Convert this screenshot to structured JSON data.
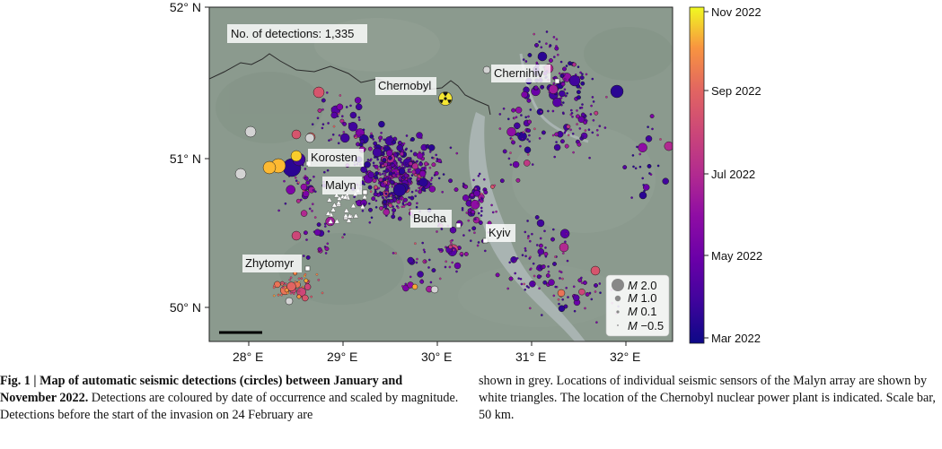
{
  "map": {
    "lon_ticks": [
      "28° E",
      "29° E",
      "30° E",
      "31° E",
      "32° E"
    ],
    "lat_ticks": [
      "52° N",
      "51° N",
      "50° N"
    ],
    "detections_label": "No. of detections: 1,335",
    "places": [
      {
        "name": "Chernobyl"
      },
      {
        "name": "Chernihiv"
      },
      {
        "name": "Korosten"
      },
      {
        "name": "Malyn"
      },
      {
        "name": "Bucha"
      },
      {
        "name": "Kyiv"
      },
      {
        "name": "Zhytomyr"
      }
    ],
    "magnitude_legend": [
      {
        "label": "M 2.0",
        "m": "M",
        "v": " 2.0"
      },
      {
        "label": "M 1.0",
        "m": "M",
        "v": " 1.0"
      },
      {
        "label": "M 0.1",
        "m": "M",
        "v": " 0.1"
      },
      {
        "label": "M −0.5",
        "m": "M",
        "v": " −0.5"
      }
    ],
    "colorbar_labels": [
      "Nov 2022",
      "Sep 2022",
      "Jul 2022",
      "May 2022",
      "Mar 2022"
    ],
    "colors": {
      "land": "#8b9a8e",
      "water": "#a9b4b2",
      "pre_invasion": "#d3d3d3"
    }
  },
  "caption": {
    "label": "Fig. 1 | ",
    "title": "Map of automatic seismic detections (circles) between January and November 2022.",
    "body_left": " Detections are coloured by date of occurrence and scaled by magnitude. Detections before the start of the invasion on 24 February are",
    "body_right": "shown in grey. Locations of individual seismic sensors of the Malyn array are shown by white triangles. The location of the Chernobyl nuclear power plant is indicated. Scale bar, 50 km."
  }
}
